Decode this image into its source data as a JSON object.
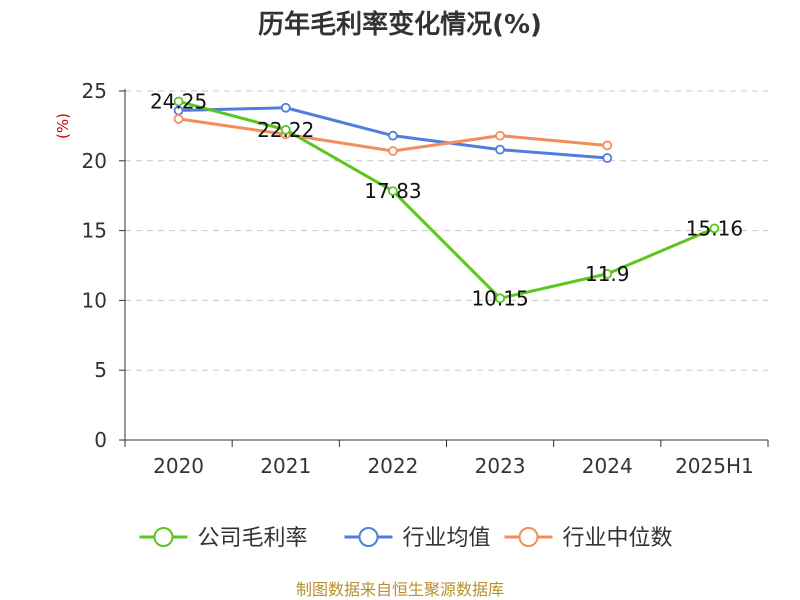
{
  "chart_data": {
    "type": "line",
    "title": "历年毛利率变化情况(%)",
    "ylabel": "(%)",
    "xlabel": "",
    "categories": [
      "2020",
      "2021",
      "2022",
      "2023",
      "2024",
      "2025H1"
    ],
    "ylim": [
      0,
      25
    ],
    "yticks": [
      0,
      5,
      10,
      15,
      20,
      25
    ],
    "grid": true,
    "legend_position": "bottom",
    "series": [
      {
        "name": "公司毛利率",
        "color": "#5cc520",
        "values": [
          24.25,
          22.22,
          17.83,
          10.15,
          11.9,
          15.16
        ],
        "show_labels": true
      },
      {
        "name": "行业均值",
        "color": "#4e7fe0",
        "values": [
          23.6,
          23.8,
          21.8,
          20.8,
          20.2,
          null
        ],
        "show_labels": false
      },
      {
        "name": "行业中位数",
        "color": "#f28e5c",
        "values": [
          23.0,
          21.9,
          20.7,
          21.8,
          21.1,
          null
        ],
        "show_labels": false
      }
    ]
  },
  "footer": {
    "source": "制图数据来自恒生聚源数据库"
  }
}
